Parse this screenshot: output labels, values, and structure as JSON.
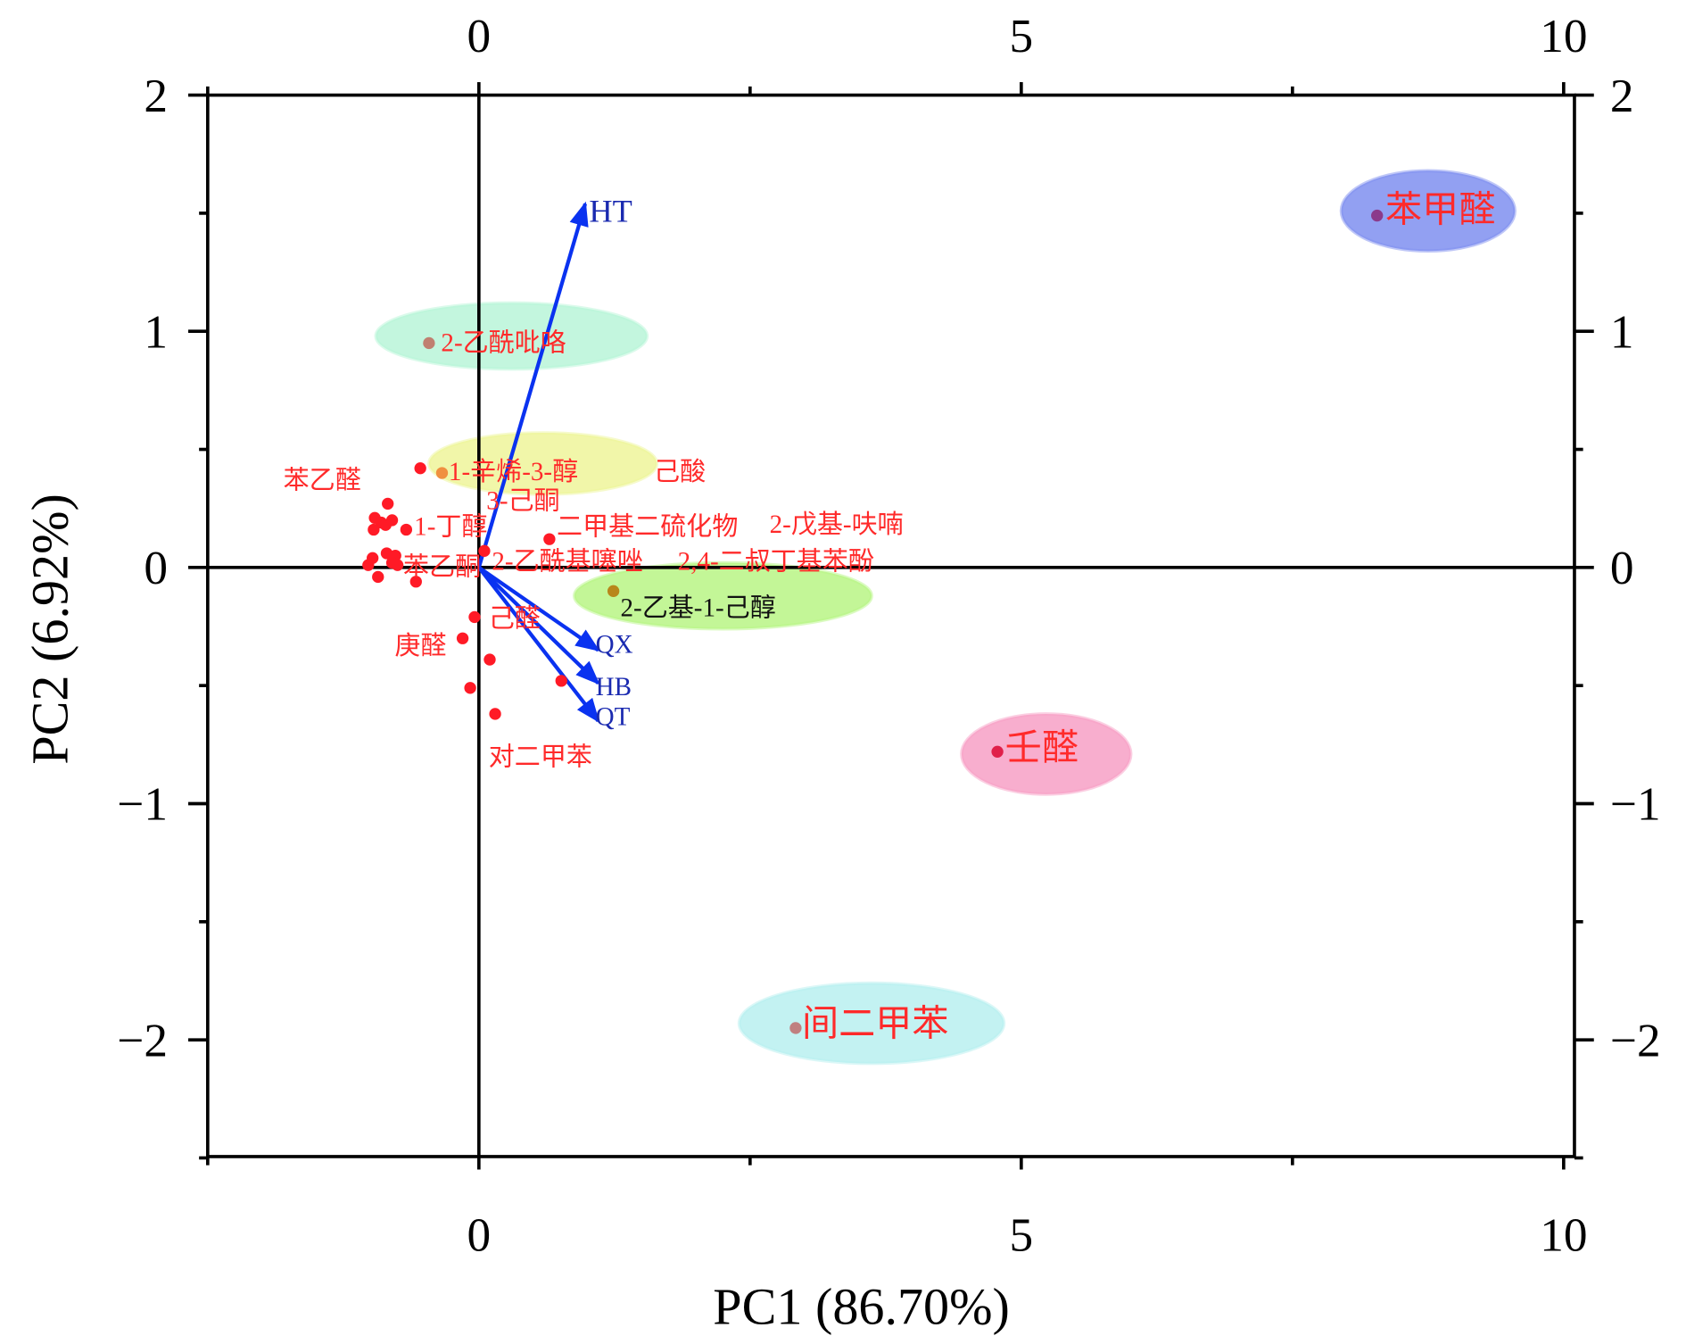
{
  "chart_data": {
    "type": "scatter",
    "title": "",
    "xlabel": "PC1 (86.70%)",
    "ylabel": "PC2 (6.92%)",
    "xlim": [
      -2.5,
      10.1
    ],
    "ylim": [
      -2.5,
      2
    ],
    "x_ticks": [
      0,
      5,
      10
    ],
    "y_ticks": [
      2,
      1,
      0,
      -1,
      -2
    ],
    "x_tick_labels": [
      "0",
      "5",
      "10"
    ],
    "y_tick_labels": [
      "2",
      "1",
      "0",
      "−1",
      "−2"
    ],
    "grid": false,
    "highlighted": [
      {
        "label": "苯甲醛",
        "x": 8.28,
        "y": 1.49,
        "ellipse": {
          "cx": 8.75,
          "cy": 1.51,
          "rx": 0.8,
          "ry": 0.17,
          "color": "#7f8ff0"
        },
        "dot_color": "#8b3a8b"
      },
      {
        "label": "2-乙酰吡咯",
        "x": -0.46,
        "y": 0.95,
        "ellipse": {
          "cx": 0.3,
          "cy": 0.98,
          "rx": 1.25,
          "ry": 0.14,
          "color": "#b8f5d8"
        },
        "dot_color": "#c08070"
      },
      {
        "label": "1-辛烯-3-醇",
        "x": -0.34,
        "y": 0.4,
        "ellipse": {
          "cx": 0.59,
          "cy": 0.44,
          "rx": 1.05,
          "ry": 0.13,
          "color": "#eef59a"
        },
        "dot_color": "#f09040"
      },
      {
        "label": "2-乙基-1-己醇",
        "x": 1.24,
        "y": -0.1,
        "ellipse": {
          "cx": 2.25,
          "cy": -0.12,
          "rx": 1.37,
          "ry": 0.14,
          "color": "#b8f585"
        },
        "dot_color": "#b8861b"
      },
      {
        "label": "壬醛",
        "x": 4.78,
        "y": -0.78,
        "ellipse": {
          "cx": 5.23,
          "cy": -0.79,
          "rx": 0.78,
          "ry": 0.17,
          "color": "#f7a0c6"
        },
        "dot_color": "#e0204a"
      },
      {
        "label": "间二甲苯",
        "x": 2.92,
        "y": -1.95,
        "ellipse": {
          "cx": 3.62,
          "cy": -1.93,
          "rx": 1.22,
          "ry": 0.17,
          "color": "#b8f0f0"
        },
        "dot_color": "#c08080"
      }
    ],
    "points": [
      [
        -0.54,
        0.42
      ],
      [
        -0.84,
        0.27
      ],
      [
        -0.96,
        0.21
      ],
      [
        -0.9,
        0.19
      ],
      [
        -0.97,
        0.16
      ],
      [
        -0.86,
        0.18
      ],
      [
        -0.8,
        0.2
      ],
      [
        -0.67,
        0.16
      ],
      [
        0.65,
        0.12
      ],
      [
        0.05,
        0.07
      ],
      [
        -0.98,
        0.04
      ],
      [
        -1.02,
        0.01
      ],
      [
        -0.85,
        0.06
      ],
      [
        -0.77,
        0.05
      ],
      [
        -0.75,
        0.01
      ],
      [
        -0.93,
        -0.04
      ],
      [
        -0.8,
        0.02
      ],
      [
        -0.58,
        -0.06
      ],
      [
        -0.04,
        -0.21
      ],
      [
        -0.15,
        -0.3
      ],
      [
        0.1,
        -0.39
      ],
      [
        -0.08,
        -0.51
      ],
      [
        0.76,
        -0.48
      ],
      [
        0.15,
        -0.62
      ]
    ],
    "point_labels": [
      "苯乙醛",
      "己酸",
      "3-己酮",
      "1-丁醇",
      "二甲基二硫化物",
      "2-戊基-呋喃",
      "苯乙酮",
      "2-乙酰基噻唑",
      "2,4-二叔丁基苯酚",
      "己醛",
      "庚醛",
      "对二甲苯"
    ],
    "loadings": [
      {
        "name": "HT",
        "x": 0.98,
        "y": 1.54
      },
      {
        "name": "QX",
        "x": 1.1,
        "y": -0.35
      },
      {
        "name": "HB",
        "x": 1.1,
        "y": -0.49
      },
      {
        "name": "QT",
        "x": 1.1,
        "y": -0.65
      }
    ],
    "colors": {
      "points": "#ff1a26",
      "labels": "#ff2a2a",
      "arrows": "#0a32f0",
      "arrow_labels": "#1a2ab0"
    }
  }
}
